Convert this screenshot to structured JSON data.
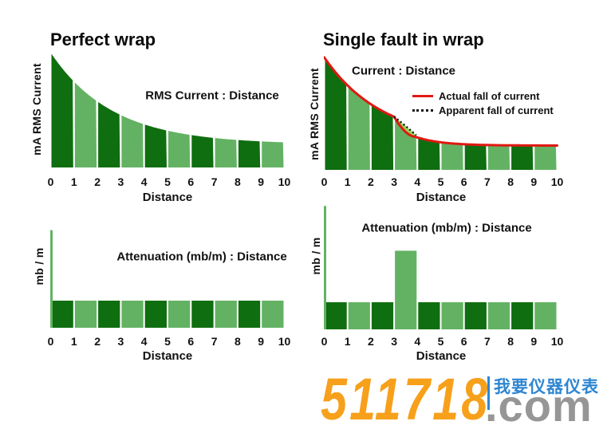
{
  "colors": {
    "bar_dark_green": "#0f6e0f",
    "bar_light_green": "#63b263",
    "actual_curve_red": "#e01812",
    "apparent_dot_black": "#151515",
    "fault_wedge_green": "#97d455",
    "text_black": "#0a0a0a",
    "watermark_orange": "#f7a01b",
    "watermark_gray": "#969696",
    "watermark_blue": "#2e86d2"
  },
  "chart_data": [
    {
      "id": "perfect-wrap-current",
      "type": "bar",
      "title": "Perfect wrap",
      "inner_label": "RMS Current : Distance",
      "ylabel": "mA RMS Current",
      "xlabel": "Distance",
      "x_ticks": [
        "0",
        "1",
        "2",
        "3",
        "4",
        "5",
        "6",
        "7",
        "8",
        "9",
        "10"
      ],
      "ylim": [
        0,
        100
      ],
      "grid": false,
      "bar_style": "contiguous-alternating-dark-light, tops follow decay curve",
      "values_at_x": [
        100,
        74.7,
        57.5,
        45.7,
        37.6,
        32.1,
        28.3,
        25.7,
        23.9,
        22.7,
        21.8
      ],
      "curve": {
        "A": 79.9,
        "k": 0.38,
        "C": 20.1
      }
    },
    {
      "id": "single-fault-current",
      "type": "bar",
      "title": "Single fault in wrap",
      "inner_label": "Current : Distance",
      "ylabel": "mA RMS Current",
      "xlabel": "Distance",
      "x_ticks": [
        "0",
        "1",
        "2",
        "3",
        "4",
        "5",
        "6",
        "7",
        "8",
        "9",
        "10"
      ],
      "ylim": [
        0,
        100
      ],
      "grid": false,
      "legend": [
        {
          "label": "Actual fall of current",
          "style": "solid-red-line"
        },
        {
          "label": "Apparent fall of current",
          "style": "black-dotted-line"
        }
      ],
      "actual_values_at_x": [
        100,
        75.1,
        58.4,
        47.2,
        28.8,
        24.5,
        22.8,
        22.1,
        21.8,
        21.7,
        21.6
      ],
      "actual_curve": {
        "upper": {
          "A": 75.5,
          "k": 0.4,
          "C": 24.5
        },
        "fault": {
          "x_start": 3.0,
          "x_end": 3.9,
          "ease_pow": 1.8
        },
        "lower": {
          "A": 7.9,
          "k": 0.9,
          "C": 21.6,
          "x0": 3.9
        }
      },
      "apparent_curve": {
        "from": [
          3.0,
          47.2
        ],
        "ctrl": [
          3.45,
          40.0
        ],
        "to": [
          3.95,
          30.8
        ]
      }
    },
    {
      "id": "perfect-wrap-attenuation",
      "type": "bar",
      "inner_label": "Attenuation (mb/m) : Distance",
      "ylabel": "mb / m",
      "xlabel": "Distance",
      "x_ticks": [
        "0",
        "1",
        "2",
        "3",
        "4",
        "5",
        "6",
        "7",
        "8",
        "9",
        "10"
      ],
      "grid": false,
      "values": [
        1,
        1,
        1,
        1,
        1,
        1,
        1,
        1,
        1,
        1
      ],
      "spike": {
        "x": 0,
        "value": 3.6
      }
    },
    {
      "id": "single-fault-attenuation",
      "type": "bar",
      "inner_label": "Attenuation (mb/m) : Distance",
      "ylabel": "mb / m",
      "xlabel": "Distance",
      "x_ticks": [
        "0",
        "1",
        "2",
        "3",
        "4",
        "5",
        "6",
        "7",
        "8",
        "9",
        "10"
      ],
      "grid": false,
      "values": [
        1,
        1,
        1,
        2.9,
        1,
        1,
        1,
        1,
        1,
        1
      ],
      "spike": {
        "x": 0,
        "value": 4.55
      }
    }
  ],
  "watermark": {
    "number": "511718",
    "suffix": ".com",
    "cjk": "我要仪器仪表"
  }
}
